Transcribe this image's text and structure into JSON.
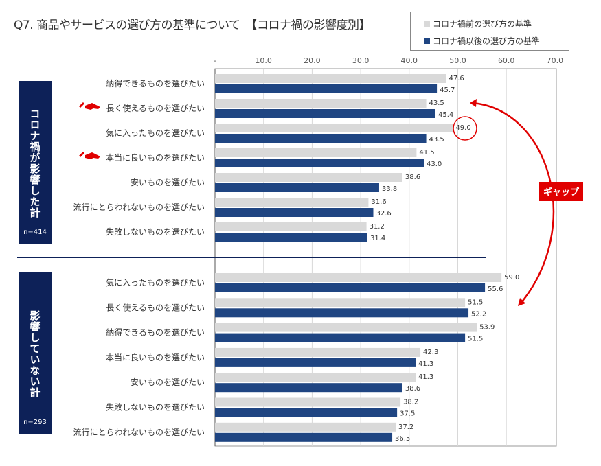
{
  "title": "Q7. 商品やサービスの選び方の基準について　【コロナ禍の影響度別】",
  "colors": {
    "before": "#d9d9d9",
    "after": "#1f4582",
    "accent": "#e00000",
    "box": "#0d2158"
  },
  "groups_meta": [
    {
      "label": "コロナ禍が影響した計",
      "n": "n=414"
    },
    {
      "label": "影響していない計",
      "n": "n=293"
    }
  ],
  "annotation": {
    "gap_label": "ギャップ",
    "circled_value": "49.0"
  },
  "chart_data": {
    "type": "bar",
    "orientation": "horizontal",
    "title": "Q7. 商品やサービスの選び方の基準について　【コロナ禍の影響度別】",
    "xlim": [
      0,
      70
    ],
    "ticks": [
      "-",
      "10.0",
      "20.0",
      "30.0",
      "40.0",
      "50.0",
      "60.0",
      "70.0"
    ],
    "tick_values": [
      0,
      10,
      20,
      30,
      40,
      50,
      60,
      70
    ],
    "grid": true,
    "legend_position": "top-right",
    "series_names": [
      "コロナ禍前の選び方の基準",
      "コロナ禍以後の選び方の基準"
    ],
    "groups": [
      {
        "categories": [
          "納得できるものを選びたい",
          "長く使えるものを選びたい",
          "気に入ったものを選びたい",
          "本当に良いものを選びたい",
          "安いものを選びたい",
          "流行にとらわれないものを選びたい",
          "失敗しないものを選びたい"
        ],
        "before": [
          47.6,
          43.5,
          49.0,
          41.5,
          38.6,
          31.6,
          31.2
        ],
        "after": [
          45.7,
          45.4,
          43.5,
          43.0,
          33.8,
          32.6,
          31.4
        ],
        "pointer_rows": [
          1,
          3
        ]
      },
      {
        "categories": [
          "気に入ったものを選びたい",
          "長く使えるものを選びたい",
          "納得できるものを選びたい",
          "本当に良いものを選びたい",
          "安いものを選びたい",
          "失敗しないものを選びたい",
          "流行にとらわれないものを選びたい"
        ],
        "before": [
          59.0,
          51.5,
          53.9,
          42.3,
          41.3,
          38.2,
          37.2
        ],
        "after": [
          55.6,
          52.2,
          51.5,
          41.3,
          38.6,
          37.5,
          36.5
        ],
        "pointer_rows": []
      }
    ]
  }
}
